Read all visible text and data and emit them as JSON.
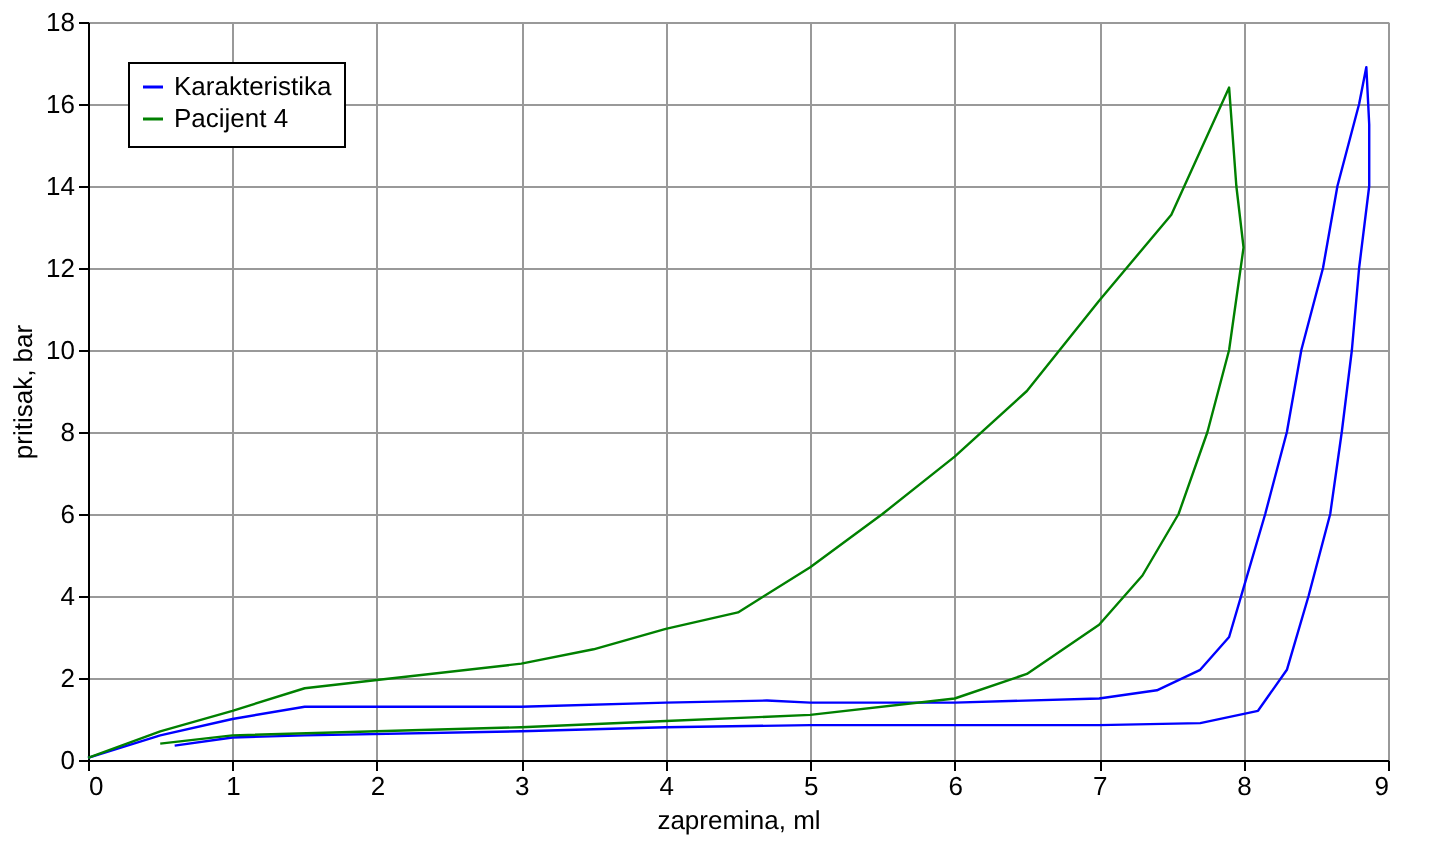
{
  "chart_data": {
    "type": "line",
    "xlabel": "zapremina, ml",
    "ylabel": "pritisak, bar",
    "xlim": [
      0,
      9
    ],
    "ylim": [
      0,
      18
    ],
    "xticks": [
      0,
      1,
      2,
      3,
      4,
      5,
      6,
      7,
      8,
      9
    ],
    "yticks": [
      0,
      2,
      4,
      6,
      8,
      10,
      12,
      14,
      16,
      18
    ],
    "grid": true,
    "legend": "top left",
    "line_style": "solid",
    "marker": "none",
    "series": [
      {
        "name": "Karakteristika",
        "color": "#0000ff",
        "x": [
          0,
          0.5,
          1,
          1.5,
          2,
          3,
          4,
          4.7,
          5,
          6,
          7,
          7.4,
          7.7,
          7.9,
          8.0,
          8.15,
          8.3,
          8.4,
          8.55,
          8.65,
          8.8,
          8.85,
          8.87,
          8.87,
          8.8,
          8.75,
          8.68,
          8.6,
          8.45,
          8.3,
          8.1,
          7.7,
          7,
          5,
          4,
          3,
          1.5,
          1.0,
          0.6
        ],
        "values": [
          0.05,
          0.6,
          1.0,
          1.3,
          1.3,
          1.3,
          1.4,
          1.45,
          1.4,
          1.4,
          1.5,
          1.7,
          2.2,
          3,
          4.2,
          6,
          8,
          10,
          12,
          14,
          16,
          16.9,
          15.5,
          14,
          12,
          10,
          8,
          6,
          4,
          2.2,
          1.2,
          0.9,
          0.85,
          0.85,
          0.8,
          0.7,
          0.6,
          0.55,
          0.35
        ]
      },
      {
        "name": "Pacijent 4",
        "color": "#008000",
        "x": [
          0,
          0.5,
          1,
          1.5,
          2,
          3,
          3.5,
          4,
          4.5,
          5,
          5.5,
          6,
          6.5,
          7,
          7.5,
          7.9,
          7.95,
          8.0,
          7.9,
          7.75,
          7.55,
          7.3,
          7.0,
          6.5,
          6,
          5,
          4,
          3,
          2,
          1,
          0.5
        ],
        "values": [
          0.05,
          0.7,
          1.2,
          1.75,
          1.95,
          2.35,
          2.7,
          3.2,
          3.6,
          4.7,
          6,
          7.4,
          9,
          11.2,
          13.3,
          16.4,
          14,
          12.5,
          10,
          8,
          6,
          4.5,
          3.3,
          2.1,
          1.5,
          1.1,
          0.95,
          0.8,
          0.7,
          0.6,
          0.4
        ]
      }
    ]
  }
}
